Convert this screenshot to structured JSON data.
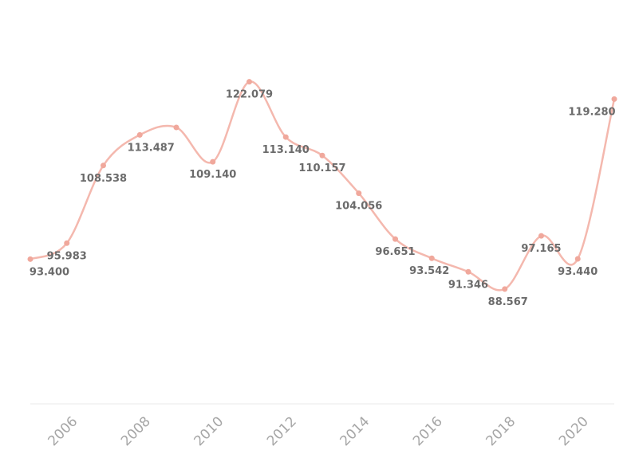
{
  "chart_data": {
    "type": "line",
    "title": "",
    "xlabel": "",
    "ylabel": "",
    "x": [
      2005,
      2006,
      2007,
      2008,
      2009,
      2010,
      2011,
      2012,
      2013,
      2014,
      2015,
      2016,
      2017,
      2018,
      2019,
      2020,
      2021
    ],
    "series": [
      {
        "values": [
          93.4,
          95.983,
          108.538,
          113.487,
          114.7,
          109.14,
          122.079,
          113.14,
          110.157,
          104.056,
          96.651,
          93.542,
          91.346,
          88.567,
          97.165,
          93.44,
          119.28
        ],
        "data_labels": [
          "93.400",
          "95.983",
          "108.538",
          "113.487",
          "",
          "109.140",
          "122.079",
          "113.140",
          "110.157",
          "104.056",
          "96.651",
          "93.542",
          "91.346",
          "88.567",
          "97.165",
          "93.440",
          "119.280"
        ]
      }
    ],
    "x_ticks": [
      "2006",
      "2008",
      "2010",
      "2012",
      "2014",
      "2016",
      "2018",
      "2020"
    ],
    "ylim": [
      70,
      125
    ],
    "grid": false,
    "legend": "none",
    "colors": {
      "line": "#f4b8ae",
      "marker": "#f0a89c",
      "axis": "#e8e8e8",
      "label": "#6b6b6b",
      "tick": "#a6a6a6"
    }
  }
}
